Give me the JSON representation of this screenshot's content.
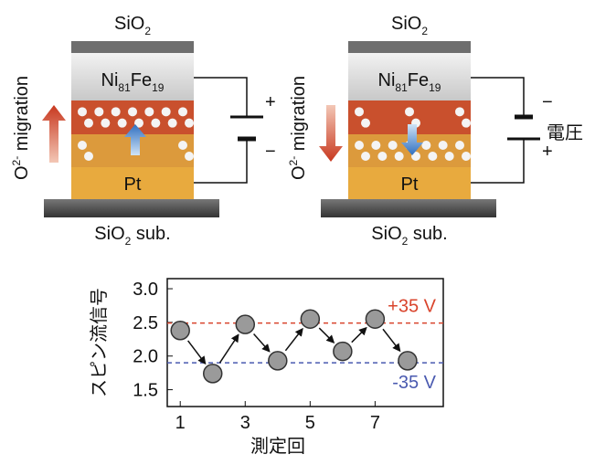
{
  "panels": [
    {
      "top_label": {
        "text": "SiO",
        "sub": "2"
      },
      "magnet": {
        "parts": [
          "Ni",
          "81",
          "Fe",
          "19"
        ]
      },
      "electrode": "Pt",
      "substrate": {
        "text": "SiO",
        "sub": "2",
        "suffix": " sub."
      },
      "migration": {
        "text": "O",
        "sup": "2-",
        "suffix": " migration"
      },
      "upper_sign": "+",
      "lower_sign": "−"
    },
    {
      "top_label": {
        "text": "SiO",
        "sub": "2"
      },
      "magnet": {
        "parts": [
          "Ni",
          "81",
          "Fe",
          "19"
        ]
      },
      "electrode": "Pt",
      "substrate": {
        "text": "SiO",
        "sub": "2",
        "suffix": " sub."
      },
      "migration": {
        "text": "O",
        "sup": "2-",
        "suffix": " migration"
      },
      "upper_sign": "−",
      "lower_sign": "+",
      "voltage_label": "電圧"
    }
  ],
  "chart_data": {
    "type": "scatter",
    "x_label": "測定回",
    "y_label": "スピン流信号",
    "x": [
      1,
      2,
      3,
      4,
      5,
      6,
      7,
      8
    ],
    "values": [
      2.38,
      1.74,
      2.47,
      1.93,
      2.55,
      2.07,
      2.55,
      1.93
    ],
    "color": "#9a9a9a",
    "xlim": [
      0.6,
      9.1
    ],
    "ylim": [
      1.25,
      3.15
    ],
    "xticks": [
      1,
      3,
      5,
      7
    ],
    "yticks": [
      {
        "value": 1.5,
        "label": "1.5"
      },
      {
        "value": 2,
        "label": "2.0"
      },
      {
        "value": 2.5,
        "label": "2.5"
      },
      {
        "value": 3,
        "label": "3.0"
      }
    ],
    "reference_lines": [
      {
        "value": 2.49,
        "label": "+35 V",
        "color": "#d9442c"
      },
      {
        "value": 1.9,
        "label": "-35 V",
        "color": "#4a5ab0"
      }
    ]
  }
}
